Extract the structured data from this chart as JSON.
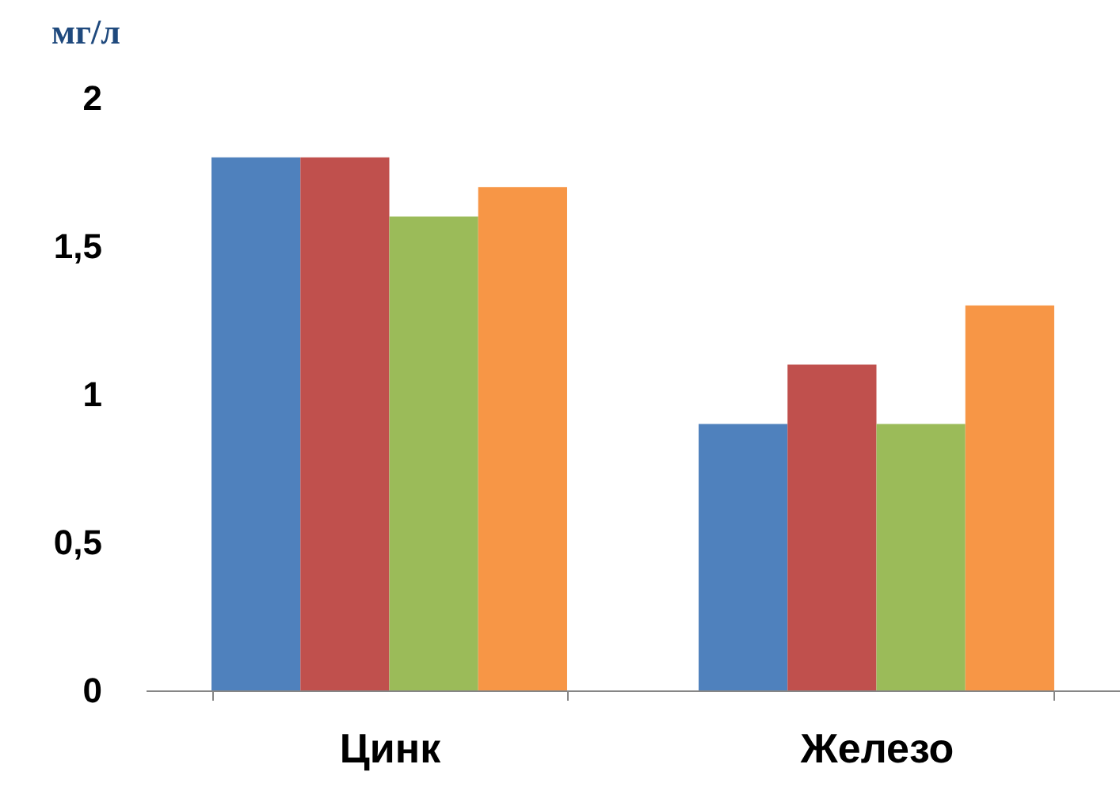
{
  "chart_data": {
    "type": "bar",
    "ylabel": "мг/л",
    "categories": [
      "Цинк",
      "Железо"
    ],
    "series": [
      {
        "color": "#4f81bd",
        "values": [
          1.8,
          0.9
        ]
      },
      {
        "color": "#c0504d",
        "values": [
          1.8,
          1.1
        ]
      },
      {
        "color": "#9bbb59",
        "values": [
          1.6,
          0.9
        ]
      },
      {
        "color": "#f79646",
        "values": [
          1.7,
          1.3
        ]
      }
    ],
    "ylim": [
      0,
      2
    ],
    "yticks": [
      0,
      {
        "value": 0.5,
        "label": "0,5"
      },
      1,
      {
        "value": 1.5,
        "label": "1,5"
      },
      2
    ],
    "grid": false,
    "legend": false
  }
}
